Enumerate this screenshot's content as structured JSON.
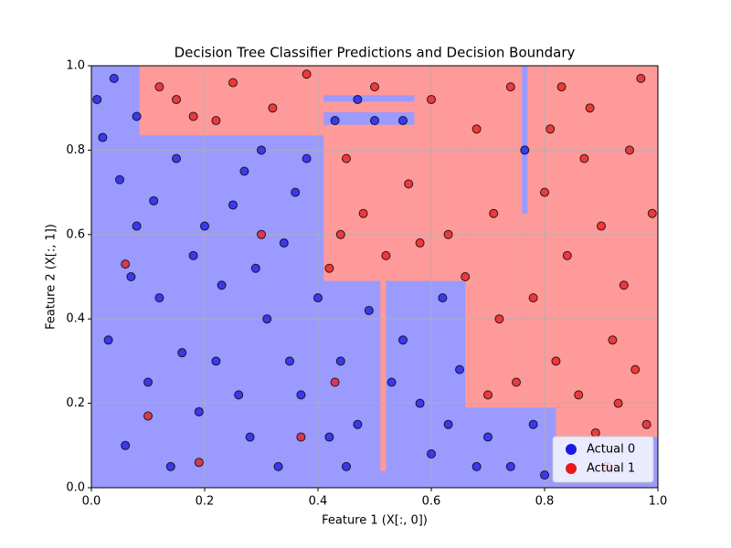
{
  "chart_data": {
    "type": "scatter",
    "title": "Decision Tree Classifier Predictions and Decision Boundary",
    "x_label": "Feature 1 (X[:, 0])",
    "y_label": "Feature 2 (X[:, 1])",
    "xlim": [
      0,
      1
    ],
    "ylim": [
      0,
      1
    ],
    "xticks": [
      {
        "value": 0,
        "label": "0.0"
      },
      0.2,
      0.4,
      0.6,
      0.8,
      {
        "value": 1,
        "label": "1.0"
      }
    ],
    "yticks": [
      {
        "value": 0,
        "label": "0.0"
      },
      0.2,
      0.4,
      0.6,
      0.8,
      {
        "value": 1,
        "label": "1.0"
      }
    ],
    "grid": true,
    "legend": "lower right",
    "background_color": "#9a9aff",
    "region_color": "#ff9a9a",
    "regions": [
      {
        "x": [
          0.085,
          0.41
        ],
        "y": [
          0.835,
          1
        ]
      },
      {
        "x": [
          0.41,
          0.57
        ],
        "y": [
          0.49,
          0.86
        ]
      },
      {
        "x": [
          0.41,
          0.57
        ],
        "y": [
          0.89,
          0.915
        ]
      },
      {
        "x": [
          0.41,
          0.57
        ],
        "y": [
          0.93,
          1
        ]
      },
      {
        "x": [
          0.57,
          0.66
        ],
        "y": [
          0.49,
          1
        ]
      },
      {
        "x": [
          0.66,
          0.76
        ],
        "y": [
          0.19,
          1
        ]
      },
      {
        "x": [
          0.76,
          0.77
        ],
        "y": [
          0.19,
          0.65
        ]
      },
      {
        "x": [
          0.77,
          1
        ],
        "y": [
          0.19,
          1
        ]
      },
      {
        "x": [
          0.82,
          1
        ],
        "y": [
          0.12,
          0.19
        ]
      },
      {
        "x": [
          0.51,
          0.52
        ],
        "y": [
          0.04,
          0.49
        ]
      }
    ],
    "series": [
      {
        "name": "Actual 0",
        "color": "#1a1ae6",
        "x": [
          0.02,
          0.05,
          0.08,
          0.12,
          0.15,
          0.18,
          0.22,
          0.25,
          0.28,
          0.31,
          0.34,
          0.37,
          0.03,
          0.06,
          0.1,
          0.14,
          0.19,
          0.23,
          0.27,
          0.33,
          0.36,
          0.4,
          0.44,
          0.47,
          0.49,
          0.45,
          0.55,
          0.58,
          0.62,
          0.6,
          0.65,
          0.7,
          0.74,
          0.78,
          0.8,
          0.01,
          0.04,
          0.08,
          0.3,
          0.38,
          0.43,
          0.5,
          0.47,
          0.55,
          0.765,
          0.2,
          0.16,
          0.29,
          0.11,
          0.35,
          0.42,
          0.53,
          0.63,
          0.68,
          0.07,
          0.26
        ],
        "y": [
          0.83,
          0.73,
          0.62,
          0.45,
          0.78,
          0.55,
          0.3,
          0.67,
          0.12,
          0.4,
          0.58,
          0.22,
          0.35,
          0.1,
          0.25,
          0.05,
          0.18,
          0.48,
          0.75,
          0.05,
          0.7,
          0.45,
          0.3,
          0.15,
          0.42,
          0.05,
          0.35,
          0.2,
          0.45,
          0.08,
          0.28,
          0.12,
          0.05,
          0.15,
          0.03,
          0.92,
          0.97,
          0.88,
          0.8,
          0.78,
          0.87,
          0.87,
          0.92,
          0.87,
          0.8,
          0.62,
          0.32,
          0.52,
          0.68,
          0.3,
          0.12,
          0.25,
          0.15,
          0.05,
          0.5,
          0.22
        ]
      },
      {
        "name": "Actual 1",
        "color": "#e61a1a",
        "x": [
          0.12,
          0.18,
          0.25,
          0.32,
          0.38,
          0.45,
          0.48,
          0.52,
          0.56,
          0.6,
          0.63,
          0.68,
          0.72,
          0.75,
          0.8,
          0.84,
          0.88,
          0.92,
          0.95,
          0.98,
          0.86,
          0.9,
          0.94,
          0.97,
          0.83,
          0.71,
          0.66,
          0.78,
          0.82,
          0.89,
          0.96,
          0.74,
          0.58,
          0.44,
          0.5,
          0.42,
          0.99,
          0.87,
          0.93,
          0.7,
          0.1,
          0.19,
          0.3,
          0.06,
          0.43,
          0.37,
          0.22,
          0.15,
          0.81,
          0.91
        ],
        "y": [
          0.95,
          0.88,
          0.96,
          0.9,
          0.98,
          0.78,
          0.65,
          0.55,
          0.72,
          0.92,
          0.6,
          0.85,
          0.4,
          0.25,
          0.7,
          0.55,
          0.9,
          0.35,
          0.8,
          0.15,
          0.22,
          0.62,
          0.48,
          0.97,
          0.95,
          0.65,
          0.5,
          0.45,
          0.3,
          0.13,
          0.28,
          0.95,
          0.58,
          0.6,
          0.95,
          0.52,
          0.65,
          0.78,
          0.2,
          0.22,
          0.17,
          0.06,
          0.6,
          0.53,
          0.25,
          0.12,
          0.87,
          0.92,
          0.85,
          0.05
        ]
      }
    ]
  }
}
